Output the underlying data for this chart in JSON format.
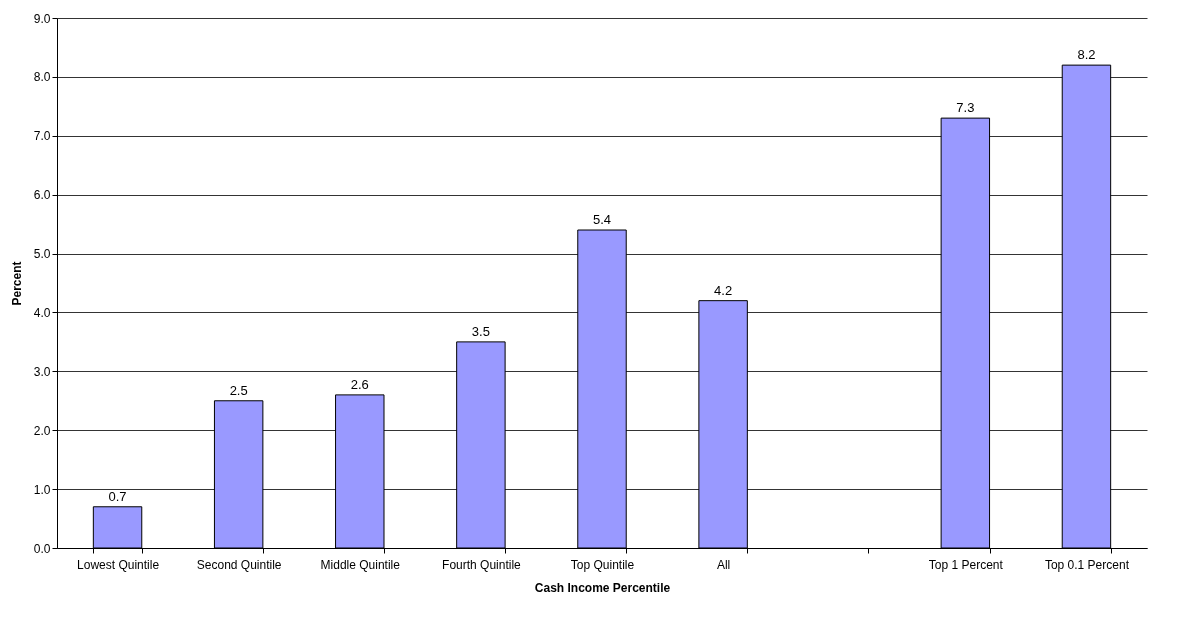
{
  "chart_data": {
    "type": "bar",
    "xlabel": "Cash Income Percentile",
    "ylabel": "Percent",
    "categories": [
      "Lowest Quintile",
      "Second Quintile",
      "Middle Quintile",
      "Fourth Quintile",
      "Top Quintile",
      "All",
      null,
      "Top 1 Percent",
      "Top 0.1 Percent"
    ],
    "values": [
      0.7,
      2.5,
      2.6,
      3.5,
      5.4,
      4.2,
      null,
      7.3,
      8.2
    ],
    "color": "#9999ff",
    "data_labels": true,
    "grid": "y",
    "ylim": [
      0,
      9
    ],
    "yticks": [
      {
        "value": 0,
        "label": "0.0"
      },
      {
        "value": 1,
        "label": "1.0"
      },
      {
        "value": 2,
        "label": "2.0"
      },
      {
        "value": 3,
        "label": "3.0"
      },
      {
        "value": 4,
        "label": "4.0"
      },
      {
        "value": 5,
        "label": "5.0"
      },
      {
        "value": 6,
        "label": "6.0"
      },
      {
        "value": 7,
        "label": "7.0"
      },
      {
        "value": 8,
        "label": "8.0"
      },
      {
        "value": 9,
        "label": "9.0"
      }
    ]
  }
}
